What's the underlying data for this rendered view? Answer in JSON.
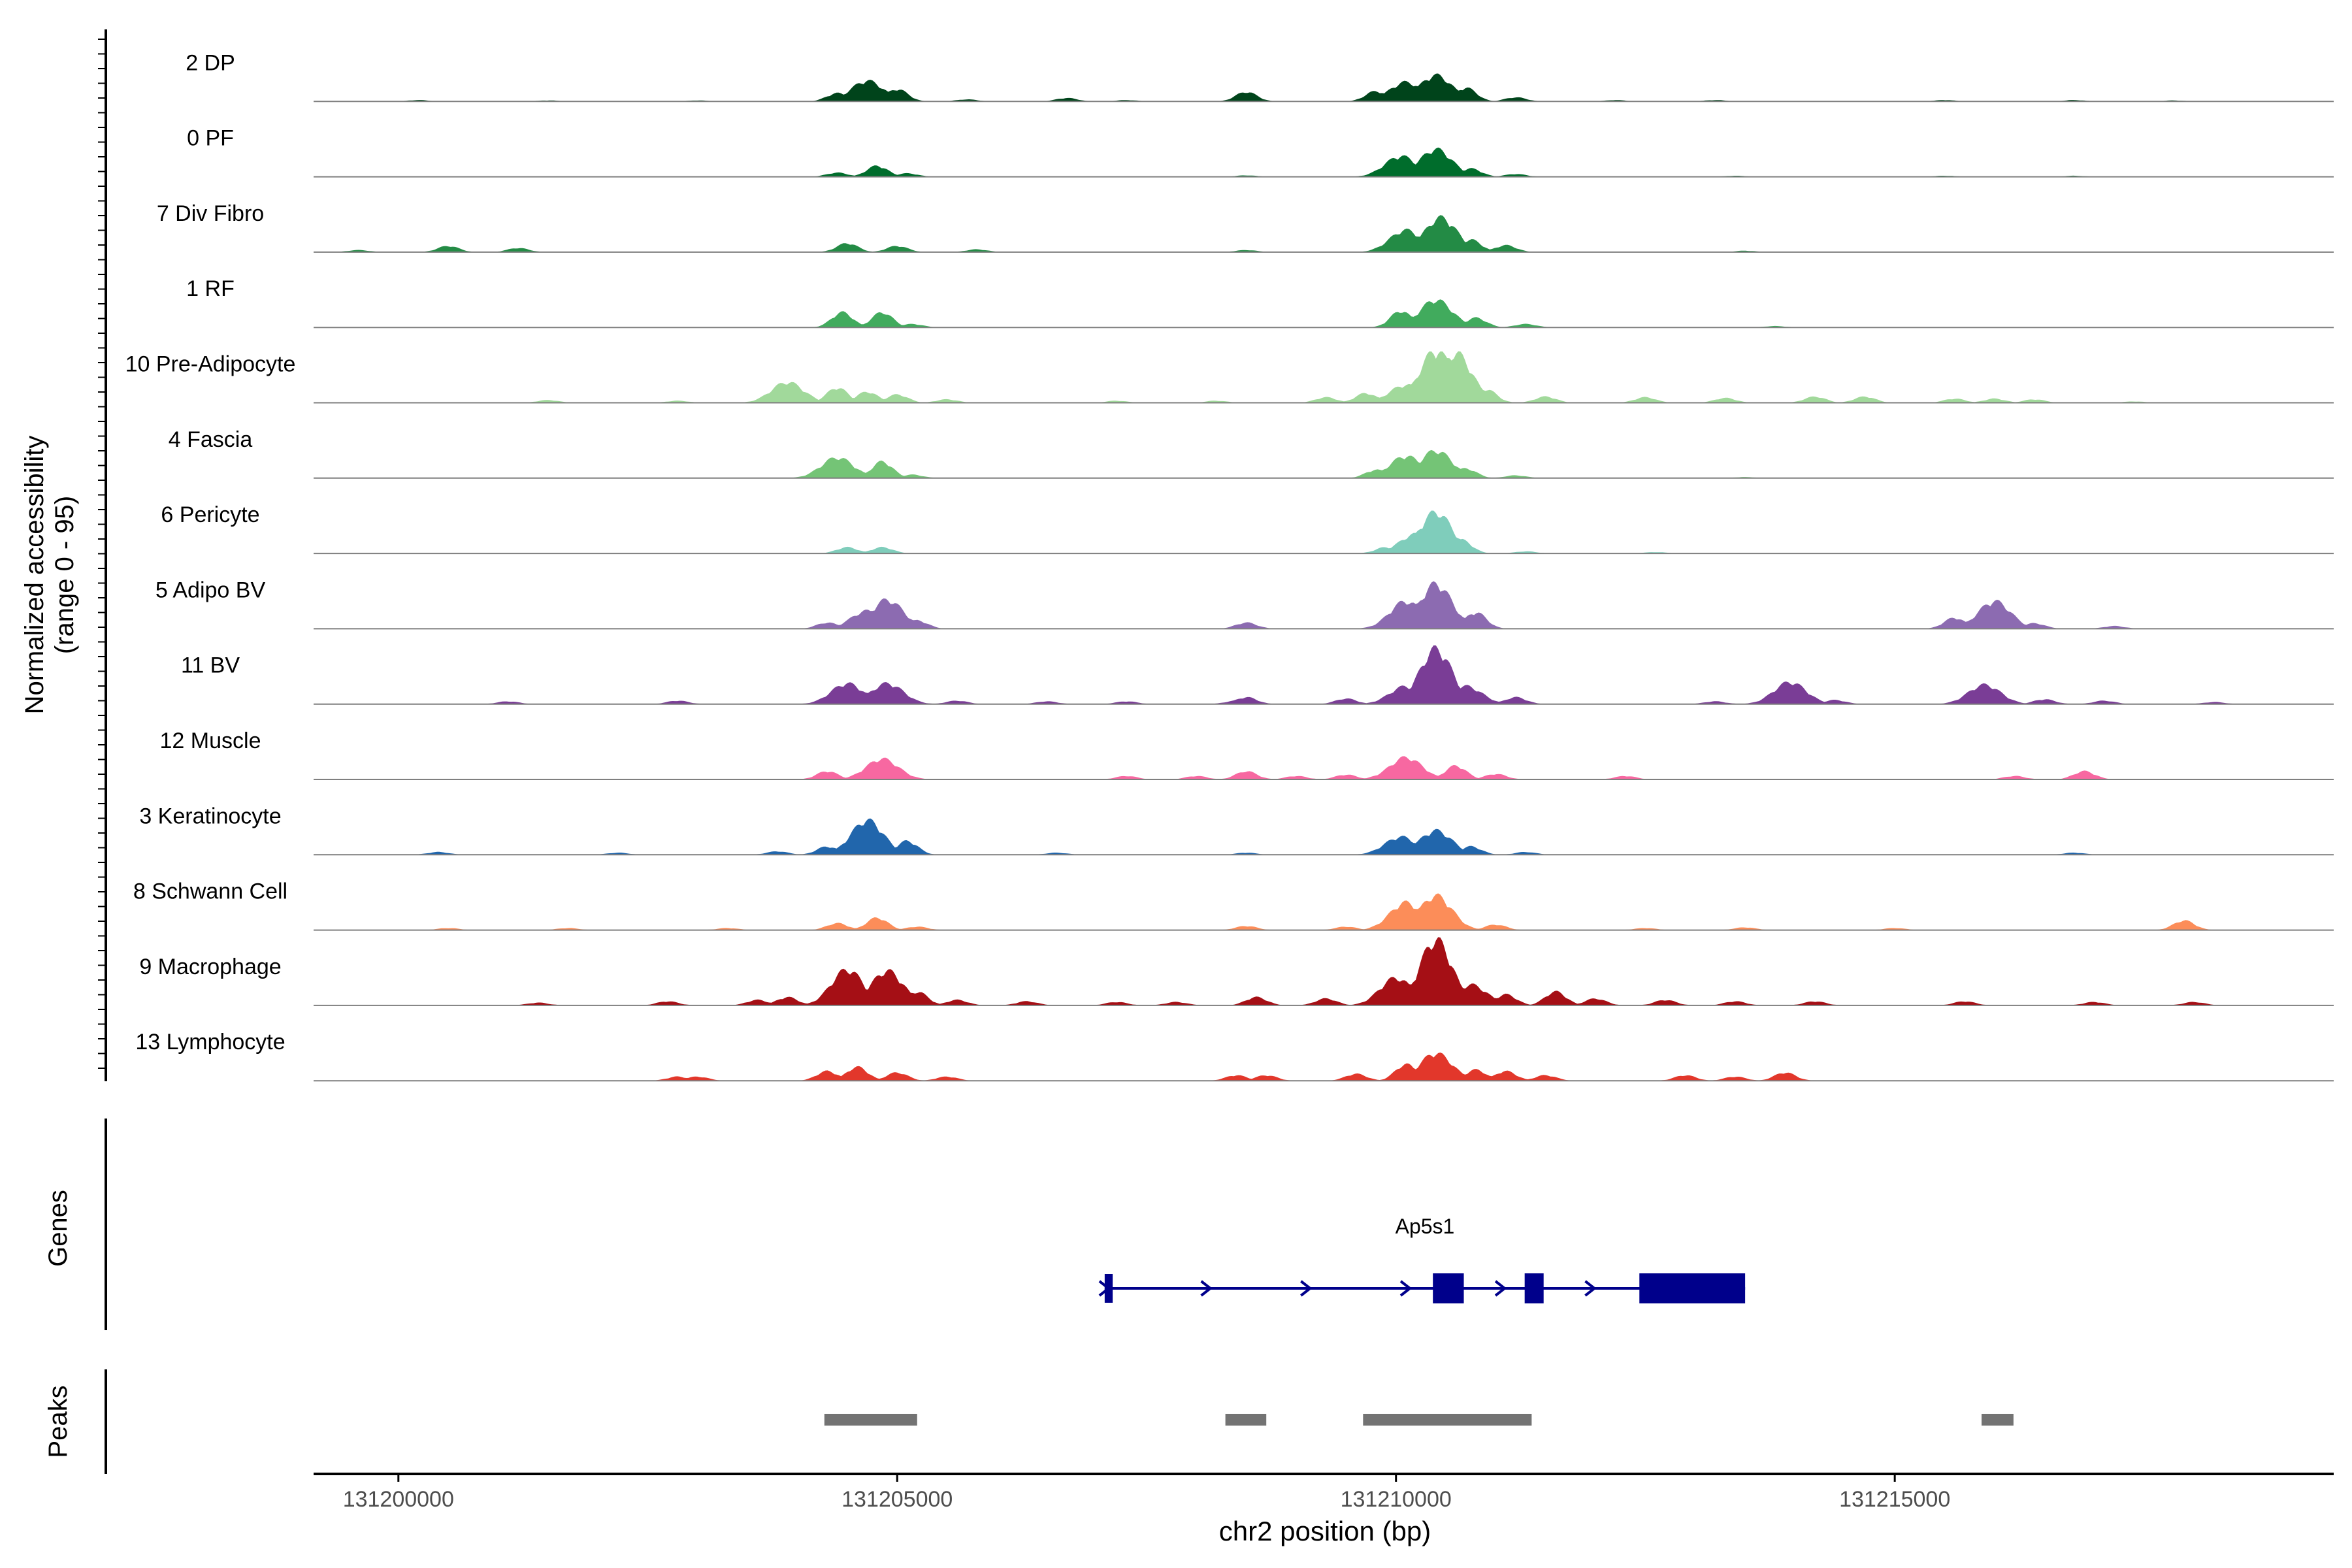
{
  "chart_data": {
    "type": "area",
    "title": "",
    "chromosome": "chr2",
    "xlabel": "chr2 position (bp)",
    "ylabel_line1": "Normalized accessibility",
    "ylabel_line2": "(range 0 - 95)",
    "xlim": [
      131199150,
      131219400
    ],
    "ylim": [
      0,
      95
    ],
    "xticks": [
      131200000,
      131205000,
      131210000,
      131215000
    ],
    "xtick_labels": [
      "131200000",
      "131205000",
      "131210000",
      "131215000"
    ],
    "tracks": [
      {
        "name": "2 DP",
        "color": "#00441b",
        "peaks": [
          [
            131200200,
            2
          ],
          [
            131201500,
            1.5
          ],
          [
            131203000,
            1.5
          ],
          [
            131204400,
            12
          ],
          [
            131204700,
            30
          ],
          [
            131205000,
            18
          ],
          [
            131205700,
            3
          ],
          [
            131206700,
            5
          ],
          [
            131207300,
            2
          ],
          [
            131208500,
            14
          ],
          [
            131209800,
            15
          ],
          [
            131210100,
            28
          ],
          [
            131210400,
            38
          ],
          [
            131210700,
            20
          ],
          [
            131211200,
            6
          ],
          [
            131212200,
            2
          ],
          [
            131213200,
            2
          ],
          [
            131215500,
            2
          ],
          [
            131216800,
            2
          ],
          [
            131217800,
            1.5
          ]
        ]
      },
      {
        "name": "0 PF",
        "color": "#006d2c",
        "peaks": [
          [
            131204400,
            6
          ],
          [
            131204800,
            16
          ],
          [
            131205100,
            5
          ],
          [
            131208500,
            2
          ],
          [
            131210050,
            30
          ],
          [
            131210400,
            40
          ],
          [
            131210750,
            12
          ],
          [
            131211200,
            4
          ],
          [
            131213400,
            1.5
          ],
          [
            131215500,
            1.5
          ],
          [
            131216800,
            1.5
          ]
        ]
      },
      {
        "name": "7 Div Fibro",
        "color": "#238b45",
        "peaks": [
          [
            131199600,
            3
          ],
          [
            131200500,
            9
          ],
          [
            131201200,
            6
          ],
          [
            131204500,
            13
          ],
          [
            131205000,
            9
          ],
          [
            131205800,
            4
          ],
          [
            131208500,
            3
          ],
          [
            131210100,
            32
          ],
          [
            131210450,
            50
          ],
          [
            131210750,
            18
          ],
          [
            131211100,
            10
          ],
          [
            131213500,
            2
          ]
        ]
      },
      {
        "name": "1 RF",
        "color": "#41ab5d",
        "peaks": [
          [
            131204450,
            22
          ],
          [
            131204850,
            22
          ],
          [
            131205150,
            5
          ],
          [
            131210050,
            24
          ],
          [
            131210400,
            40
          ],
          [
            131210800,
            14
          ],
          [
            131211300,
            5
          ],
          [
            131213800,
            2
          ]
        ]
      },
      {
        "name": "10 Pre-Adipocyte",
        "color": "#a1d99b",
        "peaks": [
          [
            131201500,
            4
          ],
          [
            131202800,
            3
          ],
          [
            131203800,
            10
          ],
          [
            131203900,
            30
          ],
          [
            131204400,
            22
          ],
          [
            131204700,
            16
          ],
          [
            131205000,
            12
          ],
          [
            131205500,
            5
          ],
          [
            131207200,
            3
          ],
          [
            131208200,
            3
          ],
          [
            131209300,
            8
          ],
          [
            131209700,
            14
          ],
          [
            131210100,
            26
          ],
          [
            131210400,
            76
          ],
          [
            131210600,
            72
          ],
          [
            131210900,
            20
          ],
          [
            131211500,
            9
          ],
          [
            131212500,
            8
          ],
          [
            131213300,
            7
          ],
          [
            131214200,
            9
          ],
          [
            131214700,
            9
          ],
          [
            131215600,
            6
          ],
          [
            131216000,
            6
          ],
          [
            131216400,
            5
          ],
          [
            131217400,
            2
          ]
        ]
      },
      {
        "name": "4 Fascia",
        "color": "#74c476",
        "peaks": [
          [
            131204400,
            30
          ],
          [
            131204850,
            24
          ],
          [
            131205150,
            5
          ],
          [
            131209800,
            12
          ],
          [
            131210100,
            32
          ],
          [
            131210400,
            40
          ],
          [
            131210700,
            14
          ],
          [
            131211200,
            4
          ],
          [
            131213500,
            1.5
          ]
        ]
      },
      {
        "name": "6 Pericyte",
        "color": "#7fcdbb",
        "peaks": [
          [
            131204500,
            9
          ],
          [
            131204850,
            9
          ],
          [
            131209900,
            9
          ],
          [
            131210200,
            28
          ],
          [
            131210400,
            60
          ],
          [
            131210650,
            20
          ],
          [
            131211300,
            3
          ],
          [
            131212600,
            2
          ]
        ]
      },
      {
        "name": "5 Adipo BV",
        "color": "#8c6bb1",
        "peaks": [
          [
            131204300,
            9
          ],
          [
            131204700,
            26
          ],
          [
            131204900,
            42
          ],
          [
            131205200,
            12
          ],
          [
            131208500,
            9
          ],
          [
            131210100,
            40
          ],
          [
            131210400,
            65
          ],
          [
            131210800,
            24
          ],
          [
            131215600,
            16
          ],
          [
            131216000,
            40
          ],
          [
            131216400,
            8
          ],
          [
            131217200,
            4
          ]
        ]
      },
      {
        "name": "11 BV",
        "color": "#7a3d96",
        "peaks": [
          [
            131201100,
            4
          ],
          [
            131202800,
            5
          ],
          [
            131204500,
            30
          ],
          [
            131204900,
            30
          ],
          [
            131205600,
            5
          ],
          [
            131206500,
            4
          ],
          [
            131207300,
            4
          ],
          [
            131208400,
            5
          ],
          [
            131208500,
            10
          ],
          [
            131209500,
            8
          ],
          [
            131210100,
            26
          ],
          [
            131210400,
            80
          ],
          [
            131210700,
            26
          ],
          [
            131211200,
            10
          ],
          [
            131213200,
            4
          ],
          [
            131213950,
            32
          ],
          [
            131214400,
            6
          ],
          [
            131215900,
            28
          ],
          [
            131216500,
            7
          ],
          [
            131217100,
            5
          ],
          [
            131218200,
            3
          ]
        ]
      },
      {
        "name": "12 Muscle",
        "color": "#f768a1",
        "peaks": [
          [
            131204300,
            12
          ],
          [
            131204850,
            30
          ],
          [
            131207300,
            5
          ],
          [
            131208000,
            5
          ],
          [
            131208500,
            12
          ],
          [
            131209000,
            5
          ],
          [
            131209500,
            7
          ],
          [
            131209900,
            10
          ],
          [
            131210100,
            32
          ],
          [
            131210600,
            20
          ],
          [
            131211000,
            8
          ],
          [
            131212300,
            5
          ],
          [
            131216200,
            5
          ],
          [
            131216900,
            12
          ]
        ]
      },
      {
        "name": "3 Keratinocyte",
        "color": "#2166ac",
        "peaks": [
          [
            131200400,
            4
          ],
          [
            131202200,
            3
          ],
          [
            131203800,
            5
          ],
          [
            131204300,
            12
          ],
          [
            131204700,
            50
          ],
          [
            131205100,
            20
          ],
          [
            131206600,
            3
          ],
          [
            131208500,
            3
          ],
          [
            131210050,
            26
          ],
          [
            131210400,
            35
          ],
          [
            131210750,
            12
          ],
          [
            131211300,
            4
          ],
          [
            131216800,
            3
          ]
        ]
      },
      {
        "name": "8 Schwann Cell",
        "color": "#fc8d59",
        "peaks": [
          [
            131200500,
            3
          ],
          [
            131201700,
            3
          ],
          [
            131203300,
            3
          ],
          [
            131204400,
            10
          ],
          [
            131204800,
            18
          ],
          [
            131205200,
            5
          ],
          [
            131208500,
            6
          ],
          [
            131209500,
            5
          ],
          [
            131210100,
            40
          ],
          [
            131210400,
            50
          ],
          [
            131211000,
            8
          ],
          [
            131212500,
            3
          ],
          [
            131213500,
            4
          ],
          [
            131215000,
            3
          ],
          [
            131217900,
            14
          ]
        ]
      },
      {
        "name": "9 Macrophage",
        "color": "#a50f15",
        "peaks": [
          [
            131201400,
            4
          ],
          [
            131202700,
            6
          ],
          [
            131203600,
            8
          ],
          [
            131203900,
            12
          ],
          [
            131204500,
            52
          ],
          [
            131204900,
            50
          ],
          [
            131205200,
            20
          ],
          [
            131205600,
            8
          ],
          [
            131206300,
            6
          ],
          [
            131207200,
            5
          ],
          [
            131207800,
            5
          ],
          [
            131208600,
            12
          ],
          [
            131209300,
            10
          ],
          [
            131210000,
            40
          ],
          [
            131210400,
            95
          ],
          [
            131210750,
            30
          ],
          [
            131211100,
            16
          ],
          [
            131211600,
            20
          ],
          [
            131212000,
            10
          ],
          [
            131212700,
            8
          ],
          [
            131213400,
            6
          ],
          [
            131214200,
            6
          ],
          [
            131215700,
            6
          ],
          [
            131217000,
            5
          ],
          [
            131218000,
            5
          ]
        ]
      },
      {
        "name": "13 Lymphocyte",
        "color": "#e2372b",
        "peaks": [
          [
            131202800,
            6
          ],
          [
            131203000,
            6
          ],
          [
            131204300,
            14
          ],
          [
            131204600,
            20
          ],
          [
            131205000,
            12
          ],
          [
            131205500,
            6
          ],
          [
            131208400,
            8
          ],
          [
            131208700,
            8
          ],
          [
            131209600,
            10
          ],
          [
            131210100,
            24
          ],
          [
            131210400,
            40
          ],
          [
            131210800,
            16
          ],
          [
            131211100,
            14
          ],
          [
            131211500,
            8
          ],
          [
            131212900,
            8
          ],
          [
            131213400,
            6
          ],
          [
            131213900,
            12
          ]
        ]
      }
    ],
    "gene_panel_label": "Genes",
    "gene": {
      "name": "Ap5s1",
      "color": "#00008b",
      "start": 131207080,
      "end": 131213500,
      "strand": "+",
      "exons": [
        [
          131207080,
          131207160
        ],
        [
          131210370,
          131210680
        ],
        [
          131211290,
          131211480
        ],
        [
          131212440,
          131213500
        ]
      ],
      "arrows": [
        131207080,
        131208100,
        131209100,
        131210100,
        131211050,
        131211950
      ]
    },
    "peaks_panel_label": "Peaks",
    "peak_color": "#737373",
    "peak_regions": [
      [
        131204270,
        131205200
      ],
      [
        131208290,
        131208700
      ],
      [
        131209670,
        131211360
      ],
      [
        131215870,
        131216190
      ]
    ]
  }
}
